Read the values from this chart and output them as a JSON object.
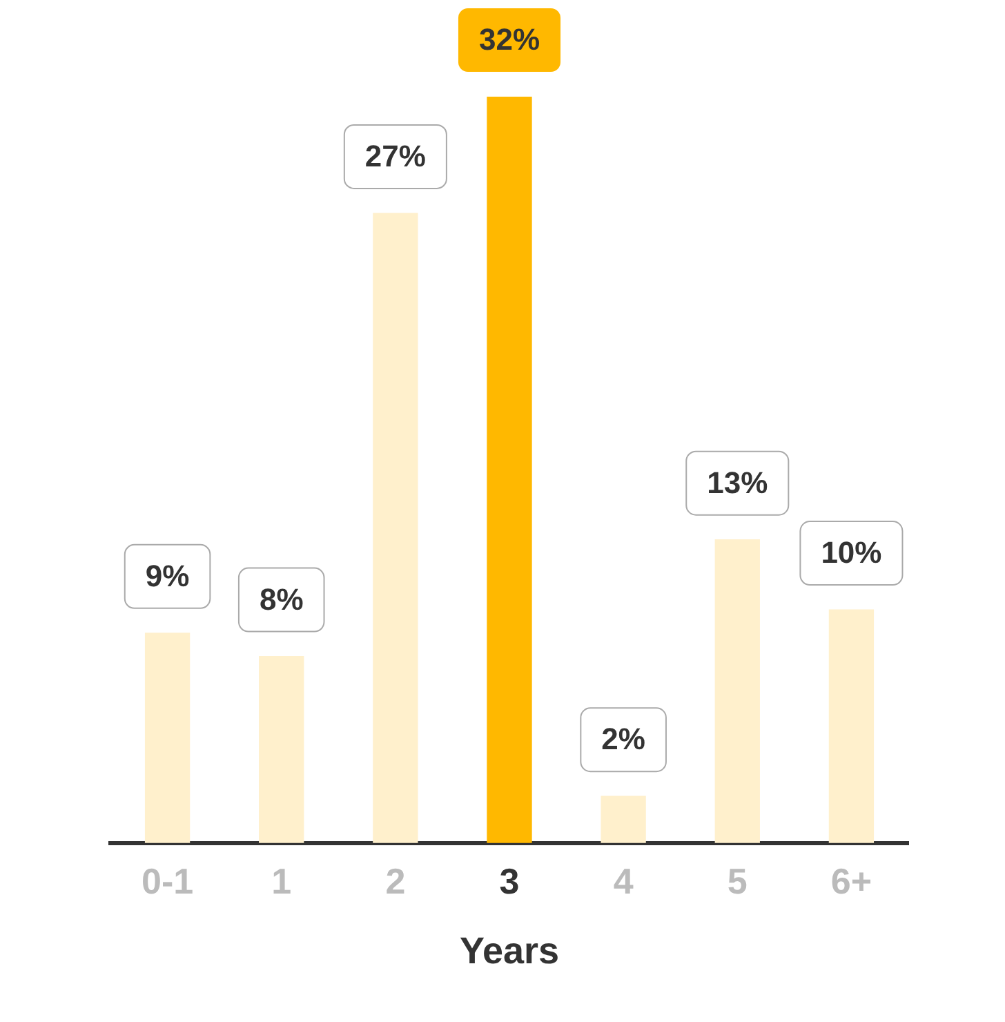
{
  "chart_data": {
    "type": "bar",
    "xlabel": "Years",
    "categories": [
      "0-1",
      "1",
      "2",
      "3",
      "4",
      "5",
      "6+"
    ],
    "values": [
      9,
      8,
      27,
      32,
      2,
      13,
      10
    ],
    "colors": [
      "#fff0cc",
      "#fff0cc",
      "#fff0cc",
      "#ffb800",
      "#fff0cc",
      "#fff0cc",
      "#fff0cc"
    ],
    "value_labels": [
      "9%",
      "8%",
      "27%",
      "32%",
      "2%",
      "13%",
      "10%"
    ],
    "grid": false,
    "legend": false
  }
}
